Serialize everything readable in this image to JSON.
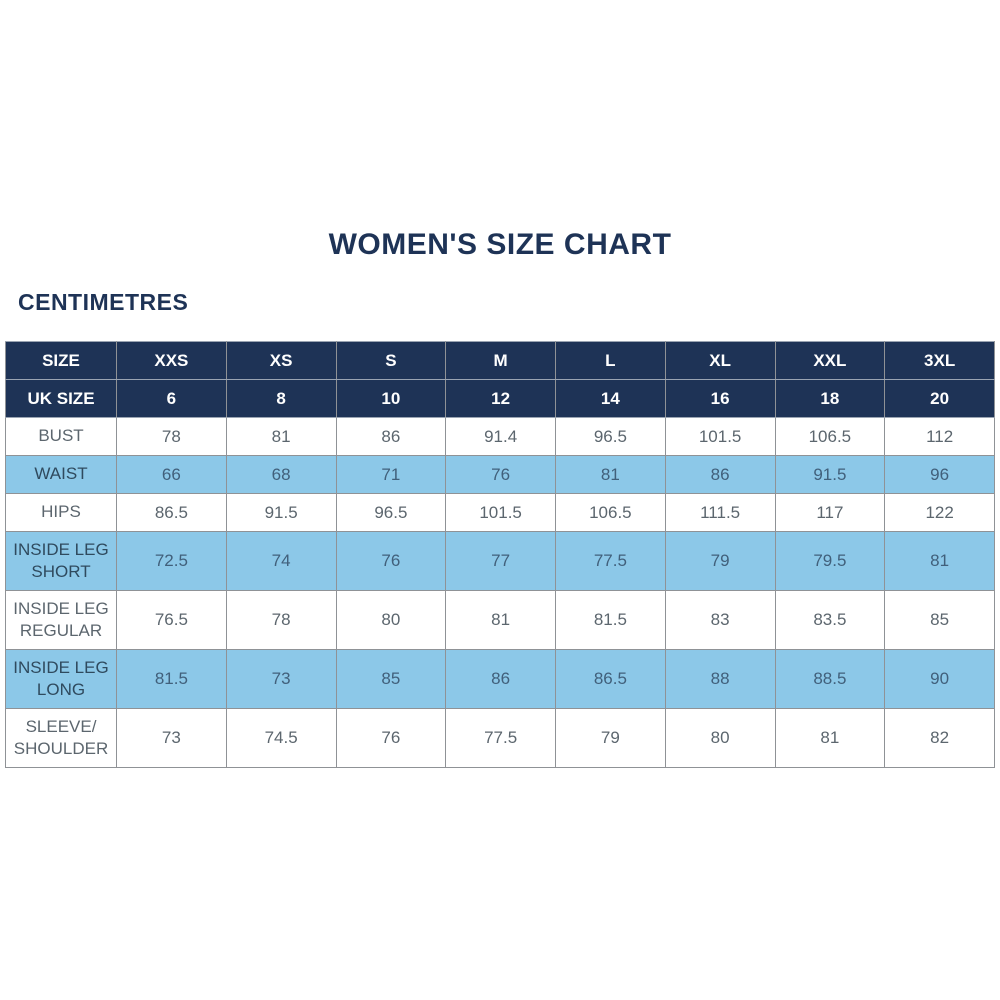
{
  "page": {
    "title": "WOMEN'S SIZE CHART",
    "unit_heading": "CENTIMETRES"
  },
  "colors": {
    "navy": "#1E3356",
    "light_blue": "#8CC8E8",
    "border": "#8F9296",
    "title_text": "#1E3356",
    "header_text": "#FFFFFF",
    "label_text": "#3C464C",
    "value_text": "#5C666E",
    "value_text_on_blue": "#41607B"
  },
  "table": {
    "header_rows": [
      {
        "label": "SIZE",
        "cells": [
          "XXS",
          "XS",
          "S",
          "M",
          "L",
          "XL",
          "XXL",
          "3XL"
        ]
      },
      {
        "label": "UK SIZE",
        "cells": [
          "6",
          "8",
          "10",
          "12",
          "14",
          "16",
          "18",
          "20"
        ]
      }
    ],
    "rows": [
      {
        "label": "BUST",
        "shade": "white",
        "tall": false,
        "cells": [
          "78",
          "81",
          "86",
          "91.4",
          "96.5",
          "101.5",
          "106.5",
          "112"
        ]
      },
      {
        "label": "WAIST",
        "shade": "blue",
        "tall": false,
        "cells": [
          "66",
          "68",
          "71",
          "76",
          "81",
          "86",
          "91.5",
          "96"
        ]
      },
      {
        "label": "HIPS",
        "shade": "white",
        "tall": false,
        "cells": [
          "86.5",
          "91.5",
          "96.5",
          "101.5",
          "106.5",
          "111.5",
          "117",
          "122"
        ]
      },
      {
        "label": "INSIDE LEG SHORT",
        "shade": "blue",
        "tall": true,
        "cells": [
          "72.5",
          "74",
          "76",
          "77",
          "77.5",
          "79",
          "79.5",
          "81"
        ]
      },
      {
        "label": "INSIDE LEG REGULAR",
        "shade": "white",
        "tall": true,
        "cells": [
          "76.5",
          "78",
          "80",
          "81",
          "81.5",
          "83",
          "83.5",
          "85"
        ]
      },
      {
        "label": "INSIDE LEG LONG",
        "shade": "blue",
        "tall": true,
        "cells": [
          "81.5",
          "73",
          "85",
          "86",
          "86.5",
          "88",
          "88.5",
          "90"
        ]
      },
      {
        "label": "SLEEVE/ SHOULDER",
        "shade": "white",
        "tall": true,
        "cells": [
          "73",
          "74.5",
          "76",
          "77.5",
          "79",
          "80",
          "81",
          "82"
        ]
      }
    ]
  }
}
